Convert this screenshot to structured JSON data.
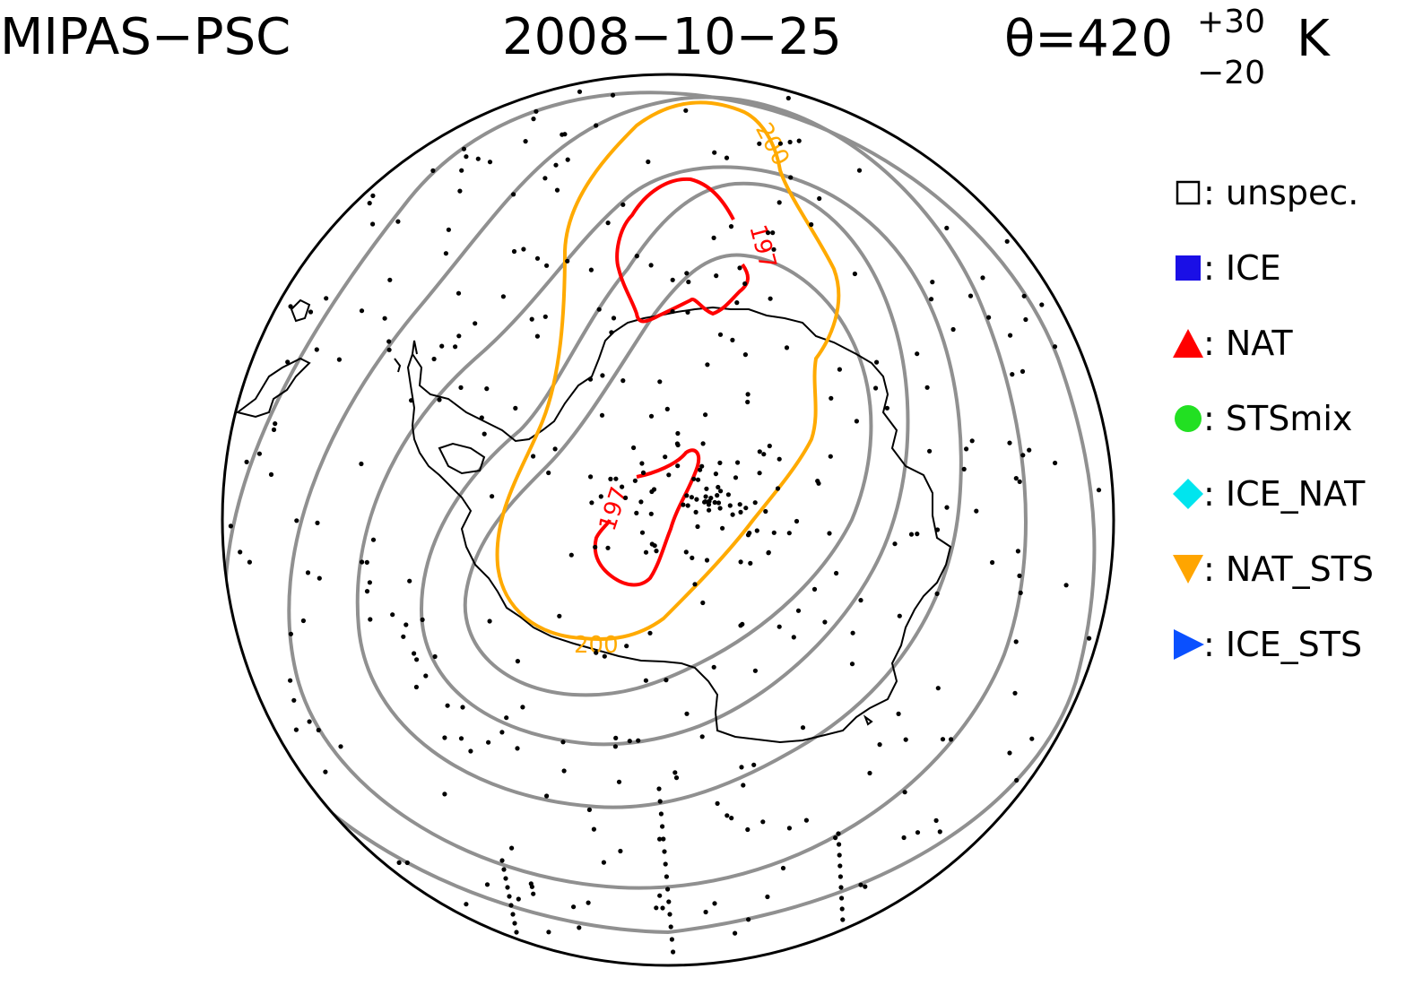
{
  "header": {
    "left": "MIPAS−PSC",
    "center": "2008−10−25",
    "theta_symbol": "θ=420",
    "theta_sup": "+30",
    "theta_sub": "−20",
    "theta_unit": "K"
  },
  "legend": [
    {
      "label": ": unspec.",
      "marker": "open-square",
      "color": "#000000"
    },
    {
      "label": ": ICE",
      "marker": "square",
      "color": "#1a0fe6"
    },
    {
      "label": ": NAT",
      "marker": "triangle-up",
      "color": "#ff0000"
    },
    {
      "label": ": STSmix",
      "marker": "circle",
      "color": "#22e022"
    },
    {
      "label": ": ICE_NAT",
      "marker": "diamond",
      "color": "#00e5ee"
    },
    {
      "label": ": NAT_STS",
      "marker": "triangle-down",
      "color": "#ffa500"
    },
    {
      "label": ": ICE_STS",
      "marker": "triangle-right",
      "color": "#0a50ff"
    }
  ],
  "contours": {
    "red_label_1": "197",
    "red_label_2": "197",
    "orange_label_1": "200",
    "orange_label_2": "200",
    "red_color": "#ff0000",
    "orange_color": "#ffaa00",
    "gray_color": "#909090"
  }
}
